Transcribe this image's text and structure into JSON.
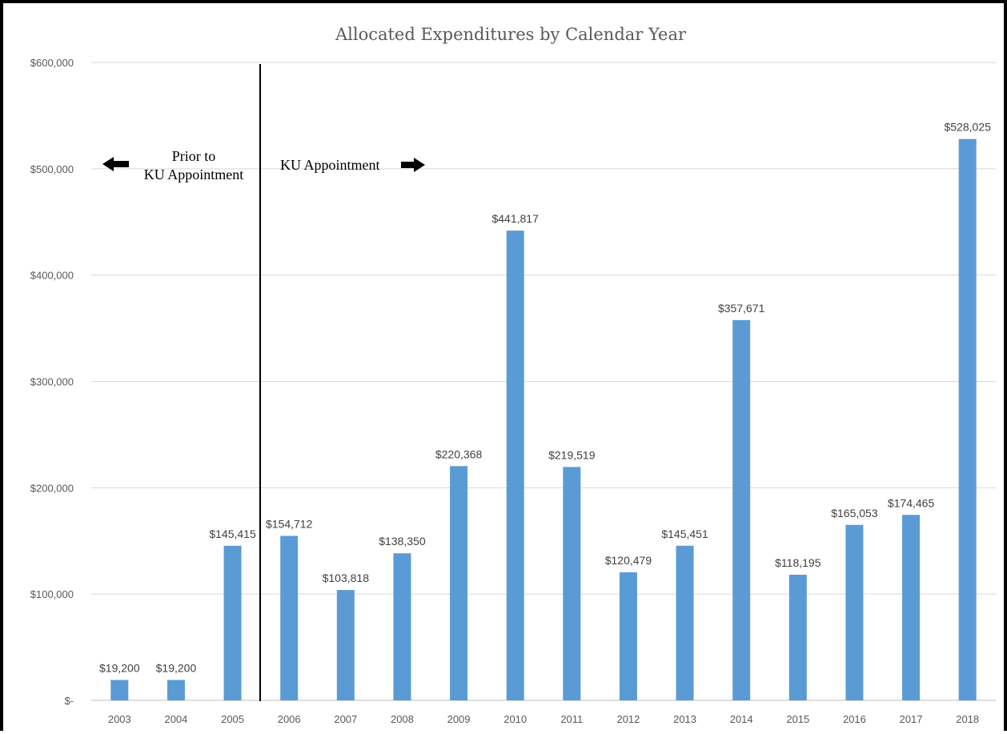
{
  "chart_data": {
    "type": "bar",
    "title": "Allocated Expenditures by Calendar Year",
    "xlabel": "",
    "ylabel": "",
    "categories": [
      "2003",
      "2004",
      "2005",
      "2006",
      "2007",
      "2008",
      "2009",
      "2010",
      "2011",
      "2012",
      "2013",
      "2014",
      "2015",
      "2016",
      "2017",
      "2018"
    ],
    "values": [
      19200,
      19200,
      145415,
      154712,
      103818,
      138350,
      220368,
      441817,
      219519,
      120479,
      145451,
      357671,
      118195,
      165053,
      174465,
      528025
    ],
    "data_labels": [
      "$19,200",
      "$19,200",
      "$145,415",
      "$154,712",
      "$103,818",
      "$138,350",
      "$220,368",
      "$441,817",
      "$219,519",
      "$120,479",
      "$145,451",
      "$357,671",
      "$118,195",
      "$165,053",
      "$174,465",
      "$528,025"
    ],
    "ylim": [
      0,
      600000
    ],
    "yticks": [
      {
        "value": 0,
        "label": "$-"
      },
      {
        "value": 100000,
        "label": "$100,000"
      },
      {
        "value": 200000,
        "label": "$200,000"
      },
      {
        "value": 300000,
        "label": "$300,000"
      },
      {
        "value": 400000,
        "label": "$400,000"
      },
      {
        "value": 500000,
        "label": "$500,000"
      },
      {
        "value": 600000,
        "label": "$600,000"
      }
    ],
    "grid": true,
    "bar_color": "#5b9bd5",
    "divider_between": [
      "2005",
      "2006"
    ],
    "annotations": {
      "left_line1": "Prior to",
      "left_line2": "KU Appointment",
      "right": "KU Appointment"
    }
  }
}
